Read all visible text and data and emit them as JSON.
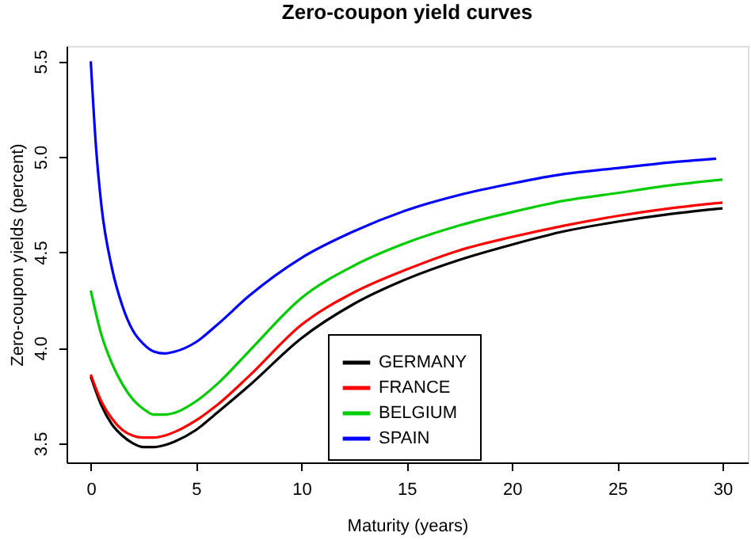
{
  "chart_data": {
    "type": "line",
    "title": "Zero-coupon yield curves",
    "xlabel": "Maturity (years)",
    "ylabel": "Zero-coupon yields (percent)",
    "x": [
      0,
      0.5,
      1,
      1.5,
      2,
      2.5,
      3,
      3.5,
      4,
      5,
      6,
      7.5,
      10,
      12.5,
      15,
      17.5,
      20,
      22.5,
      25,
      27.5,
      30
    ],
    "series": [
      {
        "name": "GERMANY",
        "color": "#000000",
        "values": [
          3.85,
          3.7,
          3.6,
          3.54,
          3.5,
          3.48,
          3.48,
          3.49,
          3.51,
          3.57,
          3.66,
          3.8,
          4.05,
          4.23,
          4.36,
          4.46,
          4.54,
          4.61,
          4.66,
          4.7,
          4.73
        ]
      },
      {
        "name": "FRANCE",
        "color": "#ff0000",
        "values": [
          3.86,
          3.72,
          3.63,
          3.57,
          3.54,
          3.53,
          3.53,
          3.54,
          3.56,
          3.62,
          3.7,
          3.85,
          4.12,
          4.29,
          4.41,
          4.51,
          4.58,
          4.64,
          4.69,
          4.73,
          4.76
        ]
      },
      {
        "name": "BELGIUM",
        "color": "#00cd00",
        "values": [
          4.3,
          4.07,
          3.92,
          3.81,
          3.73,
          3.68,
          3.65,
          3.65,
          3.66,
          3.72,
          3.81,
          3.98,
          4.26,
          4.43,
          4.55,
          4.64,
          4.71,
          4.77,
          4.81,
          4.85,
          4.88
        ]
      },
      {
        "name": "SPAIN",
        "color": "#0000ff",
        "x": [
          0,
          0.25,
          0.5,
          1,
          1.5,
          2,
          2.5,
          3,
          3.5,
          4,
          5,
          6,
          7.5,
          10,
          12.5,
          15,
          17.5,
          20,
          22.5,
          25,
          27.5,
          29.7
        ],
        "values": [
          5.5,
          5.05,
          4.75,
          4.42,
          4.22,
          4.09,
          4.02,
          3.98,
          3.97,
          3.98,
          4.03,
          4.12,
          4.27,
          4.47,
          4.61,
          4.72,
          4.8,
          4.86,
          4.91,
          4.94,
          4.97,
          4.99
        ]
      }
    ],
    "xlim": [
      -1.15,
      31.2
    ],
    "ylim": [
      3.4,
      5.58
    ],
    "xticks": [
      0,
      5,
      10,
      15,
      20,
      25,
      30
    ],
    "yticks": [
      3.5,
      {
        "value": 4,
        "label": "4.0"
      },
      4.5,
      {
        "value": 5,
        "label": "5.0"
      },
      5.5
    ],
    "grid": false,
    "legend": "bottom",
    "line_style": "solid",
    "marker": "none"
  }
}
